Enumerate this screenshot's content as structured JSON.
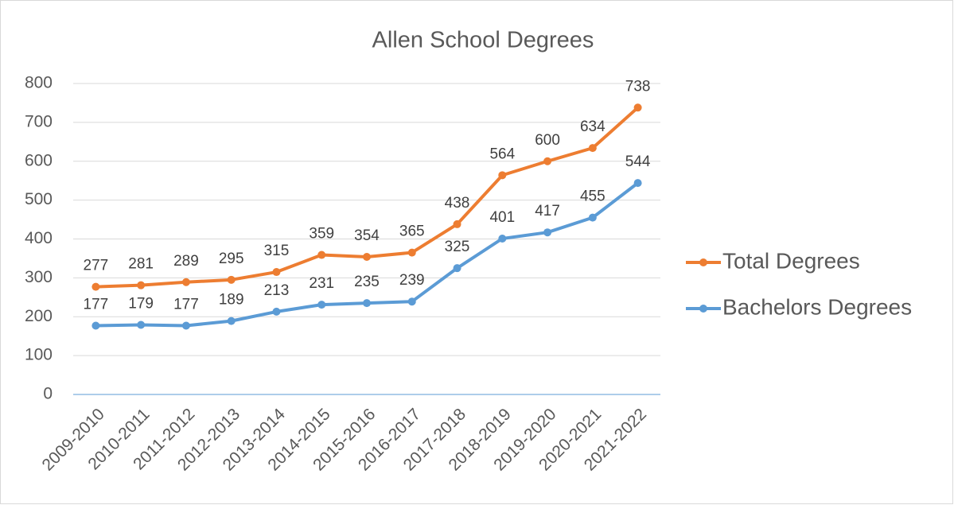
{
  "chart_data": {
    "type": "line",
    "title": "Allen School Degrees",
    "categories": [
      "2009-2010",
      "2010-2011",
      "2011-2012",
      "2012-2013",
      "2013-2014",
      "2014-2015",
      "2015-2016",
      "2016-2017",
      "2017-2018",
      "2018-2019",
      "2019-2020",
      "2020-2021",
      "2021-2022"
    ],
    "series": [
      {
        "name": "Total Degrees",
        "color": "#ed7d31",
        "values": [
          277,
          281,
          289,
          295,
          315,
          359,
          354,
          365,
          438,
          564,
          600,
          634,
          738
        ]
      },
      {
        "name": "Bachelors Degrees",
        "color": "#5b9bd5",
        "values": [
          177,
          179,
          177,
          189,
          213,
          231,
          235,
          239,
          325,
          401,
          417,
          455,
          544
        ]
      }
    ],
    "ylim": [
      0,
      800
    ],
    "yticks": [
      0,
      100,
      200,
      300,
      400,
      500,
      600,
      700,
      800
    ],
    "grid": true,
    "legend": "right"
  }
}
